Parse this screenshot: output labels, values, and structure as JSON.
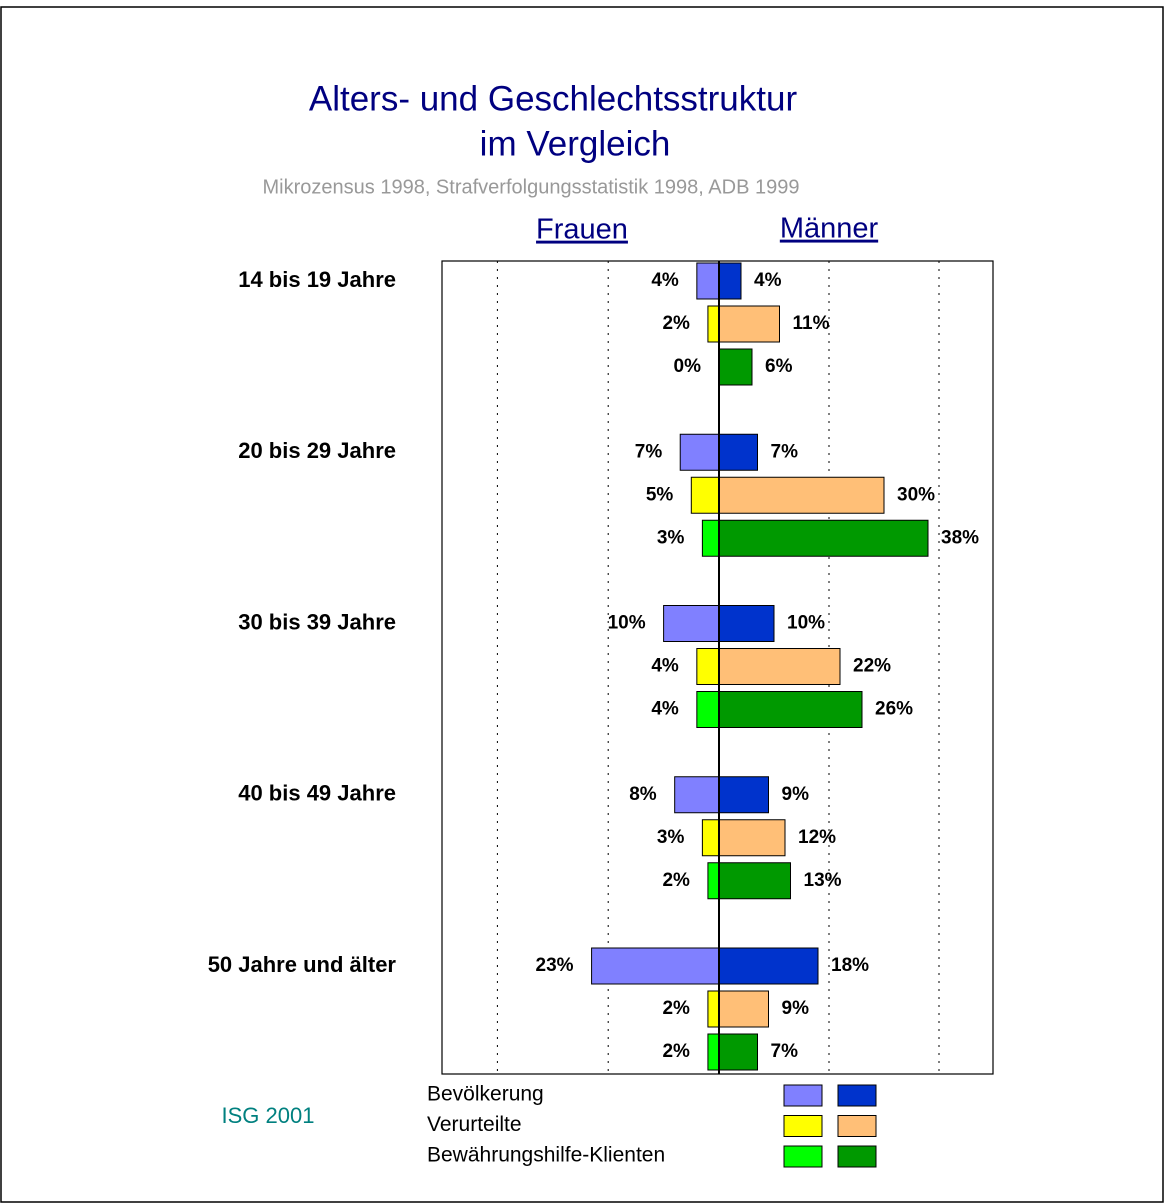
{
  "chart_data": {
    "type": "butterfly-bar",
    "title": [
      "Alters- und Geschlechtsstruktur",
      "im Vergleich"
    ],
    "subtitle": "Mikrozensus 1998, Strafverfolgungsstatistik 1998, ADB 1999",
    "sides": [
      "Frauen",
      "Männer"
    ],
    "categories": [
      "14 bis 19 Jahre",
      "20 bis 29 Jahre",
      "30 bis 39 Jahre",
      "40 bis 49 Jahre",
      "50 Jahre und älter"
    ],
    "series": [
      {
        "name": "Bevölkerung",
        "colors": [
          "#8080ff",
          "#0033cc"
        ],
        "values": [
          [
            4,
            4
          ],
          [
            7,
            7
          ],
          [
            10,
            10
          ],
          [
            8,
            9
          ],
          [
            23,
            18
          ]
        ],
        "value_labels": [
          [
            "4%",
            "4%"
          ],
          [
            "7%",
            "7%"
          ],
          [
            "10%",
            "10%"
          ],
          [
            "8%",
            "9%"
          ],
          [
            "23%",
            "18%"
          ]
        ]
      },
      {
        "name": "Verurteilte",
        "colors": [
          "#ffff00",
          "#ffbf77"
        ],
        "values": [
          [
            2,
            11
          ],
          [
            5,
            30
          ],
          [
            4,
            22
          ],
          [
            3,
            12
          ],
          [
            2,
            9
          ]
        ],
        "value_labels": [
          [
            "2%",
            "11%"
          ],
          [
            "5%",
            "30%"
          ],
          [
            "4%",
            "22%"
          ],
          [
            "3%",
            "12%"
          ],
          [
            "2%",
            "9%"
          ]
        ]
      },
      {
        "name": "Bewährungshilfe-Klienten",
        "colors": [
          "#00ff00",
          "#009900"
        ],
        "values": [
          [
            0,
            6
          ],
          [
            3,
            38
          ],
          [
            4,
            26
          ],
          [
            2,
            13
          ],
          [
            2,
            7
          ]
        ],
        "value_labels": [
          [
            "0%",
            "6%"
          ],
          [
            "3%",
            "38%"
          ],
          [
            "4%",
            "26%"
          ],
          [
            "2%",
            "13%"
          ],
          [
            "2%",
            "7%"
          ]
        ]
      }
    ],
    "xlim": [
      0,
      50
    ],
    "xticks": [
      20,
      40
    ],
    "grid": true,
    "source": "ISG 2001"
  }
}
